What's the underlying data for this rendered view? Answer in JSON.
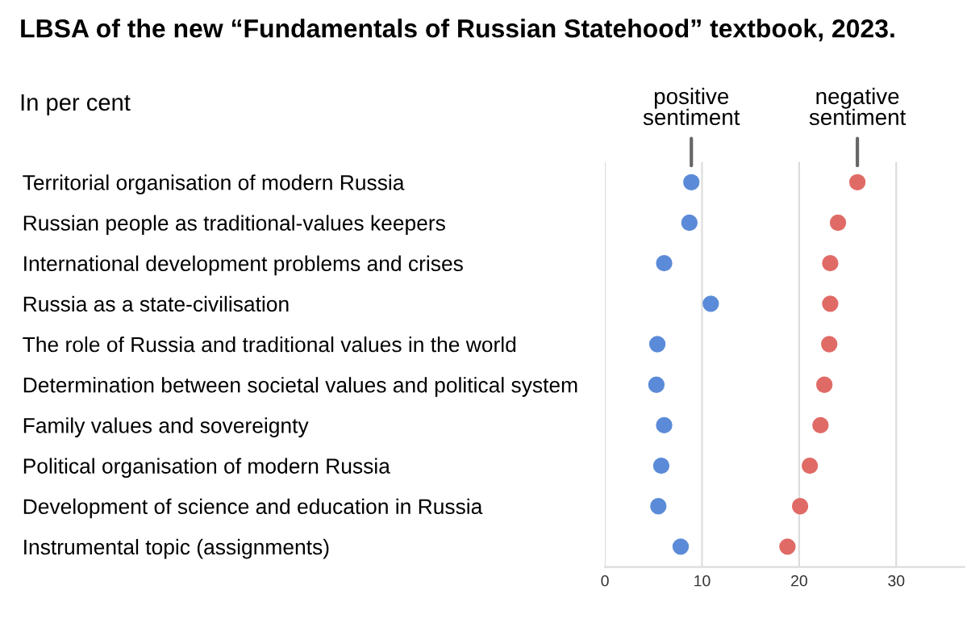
{
  "chart_data": {
    "type": "scatter",
    "title": "LBSA of the new “Fundamentals of Russian Statehood” textbook, 2023.",
    "subtitle": "In per cent",
    "orientation": "horizontal",
    "categories": [
      "Territorial organisation of modern Russia",
      "Russian people as traditional-values keepers",
      "International development problems and crises",
      "Russia as a state-civilisation",
      "The role of Russia and traditional values in the world",
      "Determination between societal values and political system",
      "Family values and sovereignty",
      "Political organisation of modern Russia",
      "Development of science and education in Russia",
      "Instrumental topic (assignments)"
    ],
    "series": [
      {
        "name": "positive sentiment",
        "color": "#5b8bd8",
        "values": [
          8.9,
          8.7,
          6.1,
          10.9,
          5.4,
          5.3,
          6.1,
          5.8,
          5.5,
          7.8
        ]
      },
      {
        "name": "negative sentiment",
        "color": "#e06b66",
        "values": [
          26.0,
          24.0,
          23.2,
          23.2,
          23.1,
          22.6,
          22.2,
          21.1,
          20.1,
          18.8
        ]
      }
    ],
    "xlim": [
      0,
      37
    ],
    "xticks": [
      0,
      10,
      20,
      30
    ],
    "grid": "x",
    "marker": "circle",
    "legend": false
  }
}
